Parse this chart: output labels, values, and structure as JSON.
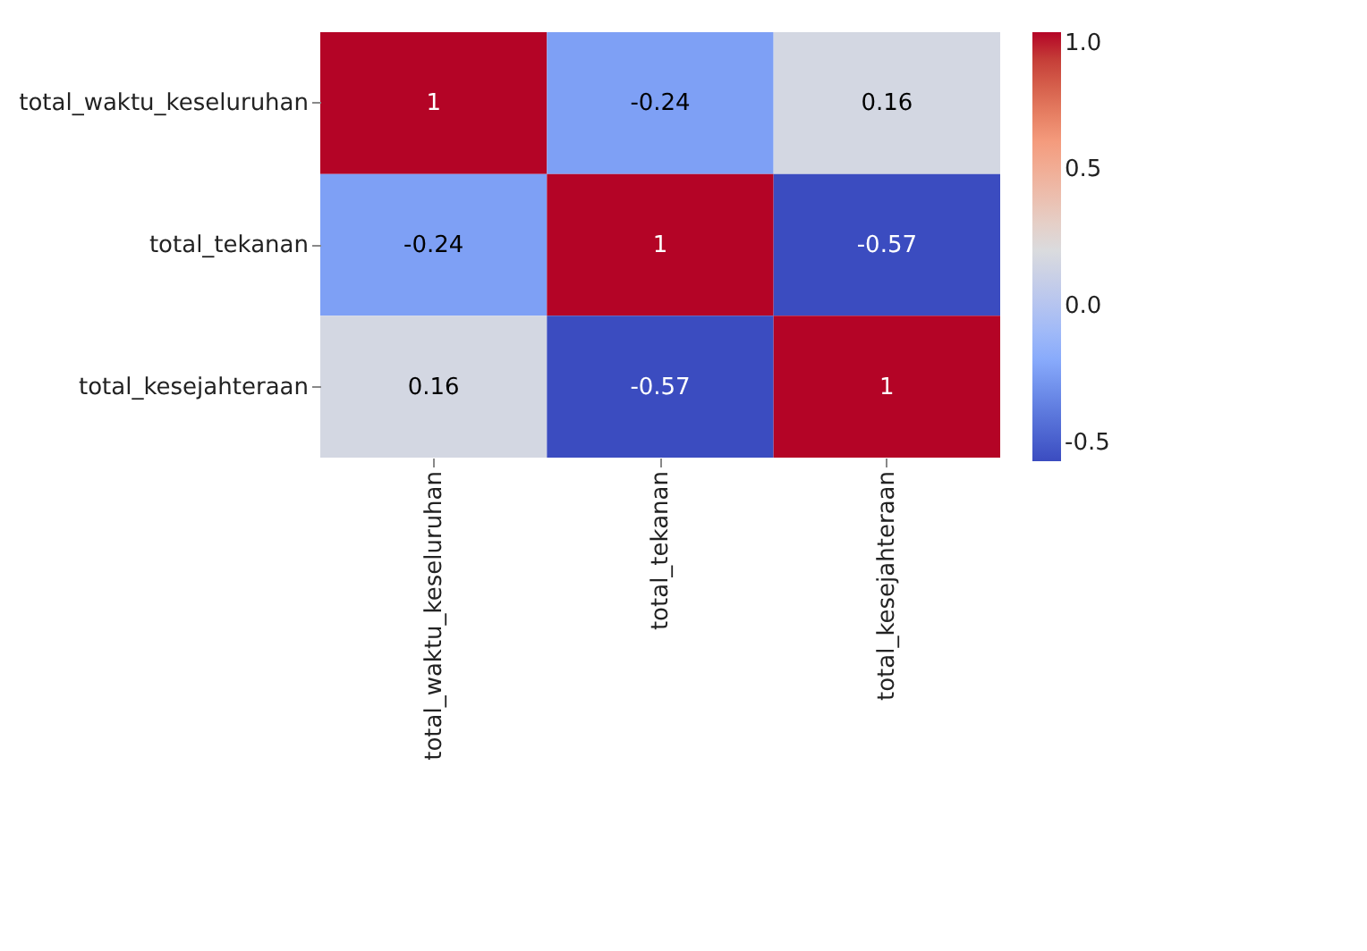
{
  "chart_data": {
    "type": "heatmap",
    "categories": [
      "total_waktu_keseluruhan",
      "total_tekanan",
      "total_kesejahteraan"
    ],
    "y_categories": [
      "total_waktu_keseluruhan",
      "total_tekanan",
      "total_kesejahteraan"
    ],
    "cells": [
      [
        1,
        -0.24,
        0.16
      ],
      [
        -0.24,
        1,
        -0.57
      ],
      [
        0.16,
        -0.57,
        1
      ]
    ],
    "clim": [
      -0.57,
      1
    ],
    "cticks": [
      {
        "value": 1.0,
        "label": "1.0"
      },
      {
        "value": 0.5,
        "label": "0.5"
      },
      {
        "value": 0.0,
        "label": "0.0"
      },
      {
        "value": -0.5,
        "label": "-0.5"
      }
    ],
    "data_labels": true
  }
}
